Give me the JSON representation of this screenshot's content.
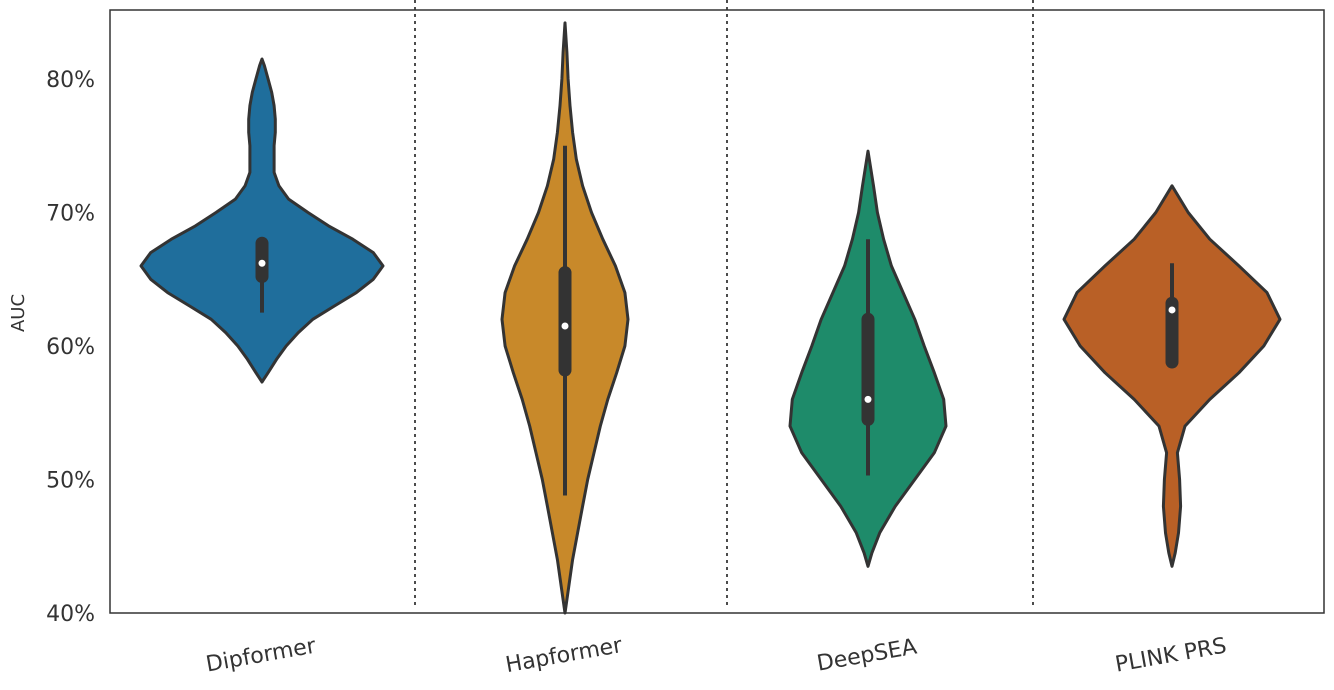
{
  "chart_data": {
    "type": "violin",
    "ylabel": "AUC",
    "ylim": [
      40,
      85
    ],
    "yticks": [
      40,
      50,
      60,
      70,
      80
    ],
    "ytick_labels": [
      "40%",
      "50%",
      "60%",
      "70%",
      "80%"
    ],
    "categories": [
      "Dipformer",
      "Hapformer",
      "DeepSEA",
      "PLINK PRS"
    ],
    "grid": false,
    "separators": "dotted vertical lines between groups",
    "series": [
      {
        "category": "Dipformer",
        "color": "#1f6e9c",
        "median": 66.2,
        "q1": 65.2,
        "q3": 67.7,
        "whisker_low": 62.5,
        "whisker_high": 67.7,
        "min": 57.3,
        "max": 81.5,
        "density": [
          [
            57.3,
            0.0
          ],
          [
            58.0,
            0.05
          ],
          [
            59.0,
            0.12
          ],
          [
            60.0,
            0.2
          ],
          [
            61.0,
            0.3
          ],
          [
            62.0,
            0.42
          ],
          [
            63.0,
            0.6
          ],
          [
            64.0,
            0.78
          ],
          [
            65.0,
            0.92
          ],
          [
            66.0,
            1.0
          ],
          [
            67.0,
            0.92
          ],
          [
            68.0,
            0.75
          ],
          [
            69.0,
            0.55
          ],
          [
            70.0,
            0.38
          ],
          [
            71.0,
            0.22
          ],
          [
            72.0,
            0.14
          ],
          [
            73.0,
            0.1
          ],
          [
            74.0,
            0.1
          ],
          [
            75.0,
            0.1
          ],
          [
            76.0,
            0.11
          ],
          [
            77.0,
            0.11
          ],
          [
            78.0,
            0.1
          ],
          [
            79.0,
            0.08
          ],
          [
            80.0,
            0.05
          ],
          [
            81.0,
            0.02
          ],
          [
            81.5,
            0.0
          ]
        ]
      },
      {
        "category": "Hapformer",
        "color": "#c8892a",
        "median": 61.5,
        "q1": 58.2,
        "q3": 65.5,
        "whisker_low": 48.8,
        "whisker_high": 75.0,
        "min": 40.0,
        "max": 84.2,
        "density": [
          [
            40.0,
            0.0
          ],
          [
            42.0,
            0.06
          ],
          [
            44.0,
            0.12
          ],
          [
            46.0,
            0.2
          ],
          [
            48.0,
            0.28
          ],
          [
            50.0,
            0.36
          ],
          [
            52.0,
            0.46
          ],
          [
            54.0,
            0.56
          ],
          [
            56.0,
            0.68
          ],
          [
            58.0,
            0.82
          ],
          [
            60.0,
            0.95
          ],
          [
            62.0,
            1.0
          ],
          [
            64.0,
            0.95
          ],
          [
            66.0,
            0.8
          ],
          [
            68.0,
            0.6
          ],
          [
            70.0,
            0.42
          ],
          [
            72.0,
            0.28
          ],
          [
            74.0,
            0.18
          ],
          [
            76.0,
            0.12
          ],
          [
            78.0,
            0.08
          ],
          [
            80.0,
            0.05
          ],
          [
            82.0,
            0.03
          ],
          [
            84.2,
            0.0
          ]
        ]
      },
      {
        "category": "DeepSEA",
        "color": "#1e8b6a",
        "median": 56.0,
        "q1": 54.5,
        "q3": 62.0,
        "whisker_low": 50.3,
        "whisker_high": 68.0,
        "min": 43.5,
        "max": 74.6,
        "density": [
          [
            43.5,
            0.0
          ],
          [
            44.5,
            0.05
          ],
          [
            46.0,
            0.15
          ],
          [
            48.0,
            0.35
          ],
          [
            50.0,
            0.6
          ],
          [
            52.0,
            0.85
          ],
          [
            54.0,
            1.0
          ],
          [
            56.0,
            0.97
          ],
          [
            58.0,
            0.85
          ],
          [
            60.0,
            0.72
          ],
          [
            62.0,
            0.6
          ],
          [
            64.0,
            0.45
          ],
          [
            66.0,
            0.3
          ],
          [
            68.0,
            0.2
          ],
          [
            70.0,
            0.12
          ],
          [
            72.0,
            0.07
          ],
          [
            74.6,
            0.0
          ]
        ]
      },
      {
        "category": "PLINK PRS",
        "color": "#b96026",
        "median": 62.7,
        "q1": 58.8,
        "q3": 63.2,
        "whisker_low": 58.8,
        "whisker_high": 66.2,
        "min": 43.5,
        "max": 72.0,
        "density": [
          [
            43.5,
            0.0
          ],
          [
            44.5,
            0.03
          ],
          [
            46.0,
            0.06
          ],
          [
            48.0,
            0.08
          ],
          [
            50.0,
            0.07
          ],
          [
            52.0,
            0.05
          ],
          [
            54.0,
            0.12
          ],
          [
            56.0,
            0.35
          ],
          [
            58.0,
            0.62
          ],
          [
            60.0,
            0.85
          ],
          [
            62.0,
            1.0
          ],
          [
            64.0,
            0.88
          ],
          [
            66.0,
            0.62
          ],
          [
            68.0,
            0.35
          ],
          [
            70.0,
            0.15
          ],
          [
            72.0,
            0.0
          ]
        ]
      }
    ]
  }
}
